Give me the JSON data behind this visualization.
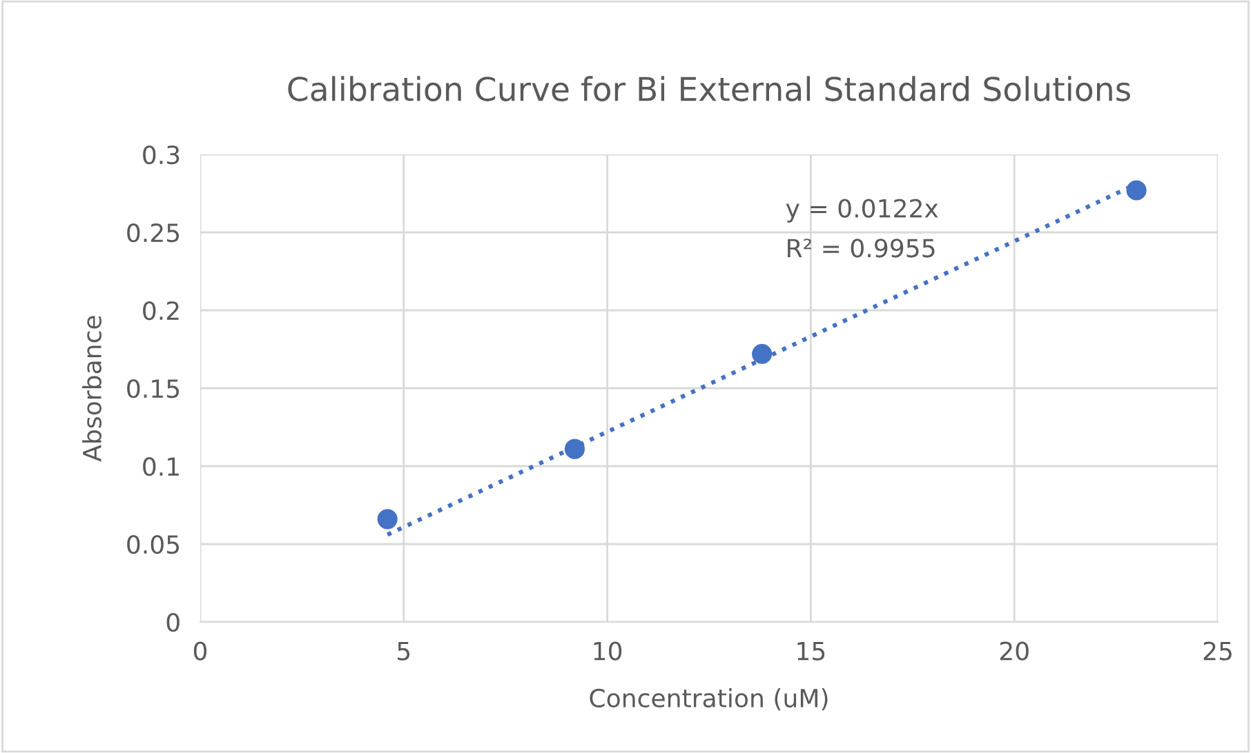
{
  "chart_data": {
    "type": "scatter",
    "title": "Calibration Curve for Bi External Standard Solutions",
    "xlabel": "Concentration (uM)",
    "ylabel": "Absorbance",
    "series": [
      {
        "color": "#4472c4",
        "marker": "circle",
        "x": [
          4.6,
          9.2,
          13.8,
          23.0
        ],
        "values": [
          0.066,
          0.111,
          0.172,
          0.277
        ]
      },
      {
        "type": "line",
        "color": "#4472c4",
        "line_style": "dotted",
        "marker": "none",
        "x": [
          4.6,
          23.0
        ],
        "values": [
          0.056,
          0.281
        ]
      }
    ],
    "annotations": [
      "y = 0.0122x",
      "R² = 0.9955"
    ],
    "xlim": [
      0,
      25
    ],
    "xticks": [
      0,
      5,
      10,
      15,
      20,
      25
    ],
    "ylim": [
      0,
      0.3
    ],
    "yticks": [
      0,
      0.05,
      0.1,
      0.15,
      0.2,
      0.25,
      0.3
    ],
    "grid": true,
    "legend": false
  }
}
